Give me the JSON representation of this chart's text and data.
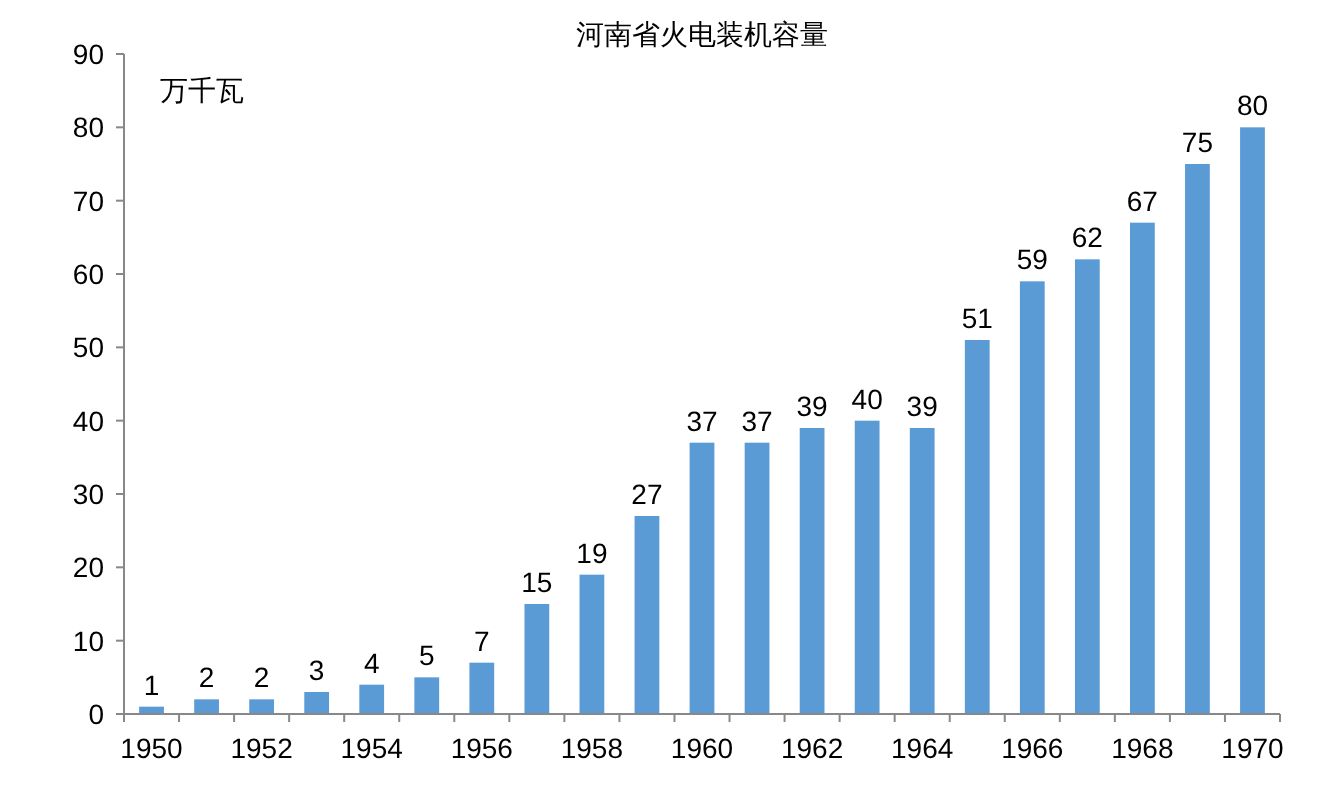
{
  "chart_data": {
    "type": "bar",
    "title": "河南省火电装机容量",
    "annotations": [
      "万千瓦"
    ],
    "categories": [
      "1950",
      null,
      "1952",
      null,
      "1954",
      null,
      "1956",
      null,
      "1958",
      null,
      "1960",
      null,
      "1962",
      null,
      "1964",
      null,
      "1966",
      null,
      "1968",
      null,
      "1970"
    ],
    "values": [
      1,
      2,
      2,
      3,
      4,
      5,
      7,
      15,
      19,
      27,
      37,
      37,
      39,
      40,
      39,
      51,
      59,
      62,
      67,
      75,
      80
    ],
    "color": "#5b9bd5",
    "ylim": [
      0,
      90
    ],
    "yticks": [
      0,
      10,
      20,
      30,
      40,
      50,
      60,
      70,
      80,
      90
    ],
    "data_labels": true,
    "grid": false
  }
}
